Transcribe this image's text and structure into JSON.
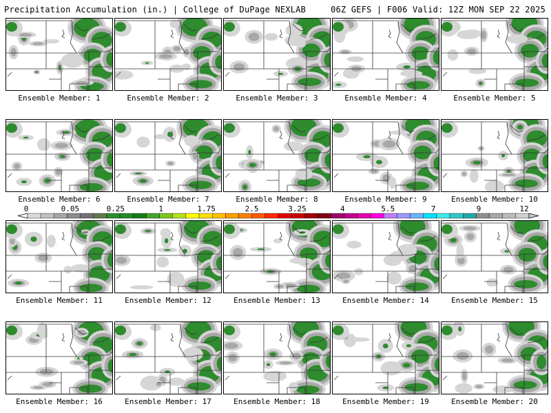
{
  "header": {
    "title_left": "Precipitation Accumulation (in.) | College of DuPage NEXLAB",
    "title_right": "06Z GEFS | F006 Valid: 12Z MON SEP 22 2025"
  },
  "panel_label_prefix": "Ensemble Member:",
  "members": [
    {
      "n": "1"
    },
    {
      "n": "2"
    },
    {
      "n": "3"
    },
    {
      "n": "4"
    },
    {
      "n": "5"
    },
    {
      "n": "6"
    },
    {
      "n": "7"
    },
    {
      "n": "8"
    },
    {
      "n": "9"
    },
    {
      "n": "10"
    },
    {
      "n": "11"
    },
    {
      "n": "12"
    },
    {
      "n": "13"
    },
    {
      "n": "14"
    },
    {
      "n": "15"
    },
    {
      "n": "16"
    },
    {
      "n": "17"
    },
    {
      "n": "18"
    },
    {
      "n": "19"
    },
    {
      "n": "20"
    }
  ],
  "colorbar": {
    "labels": [
      "0",
      "0.05",
      "0.25",
      "1",
      "1.75",
      "2.5",
      "3.25",
      "4",
      "5.5",
      "7",
      "9",
      "12"
    ],
    "colors": [
      "#d9d9d9",
      "#c0c0c0",
      "#a6a6a6",
      "#8c8c8c",
      "#737373",
      "#5e7a4e",
      "#2e8b2e",
      "#228b22",
      "#1a7a1a",
      "#46a32c",
      "#7cc61f",
      "#b6df1a",
      "#ffff00",
      "#ffe000",
      "#ffc000",
      "#ffa000",
      "#ff7f00",
      "#ff5a00",
      "#ff2a00",
      "#e60000",
      "#c80000",
      "#a00000",
      "#800018",
      "#a0006a",
      "#c0008c",
      "#e000b0",
      "#ff00e0",
      "#c07cff",
      "#9a9aff",
      "#6ab4ff",
      "#00e0ff",
      "#40e8e8",
      "#30c8c8",
      "#20a8a8",
      "#909090",
      "#a8a8a8",
      "#bcbcbc",
      "#d0d0d0"
    ]
  },
  "legend_colors": {
    "light": "#d6d6d6",
    "mid": "#a8a8a8",
    "dark": "#7a7a7a",
    "green": "#2e8b2e",
    "lime": "#9bd21c"
  }
}
